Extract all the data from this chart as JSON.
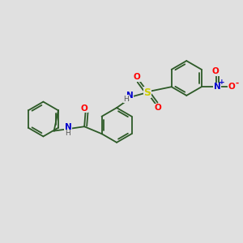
{
  "bg_color": "#e0e0e0",
  "bond_color": "#2d5a27",
  "atom_colors": {
    "O": "#ff0000",
    "N": "#0000cc",
    "S": "#cccc00",
    "H": "#555555"
  },
  "figsize": [
    3.0,
    3.0
  ],
  "dpi": 100,
  "lw": 1.3,
  "fs": 7.5
}
